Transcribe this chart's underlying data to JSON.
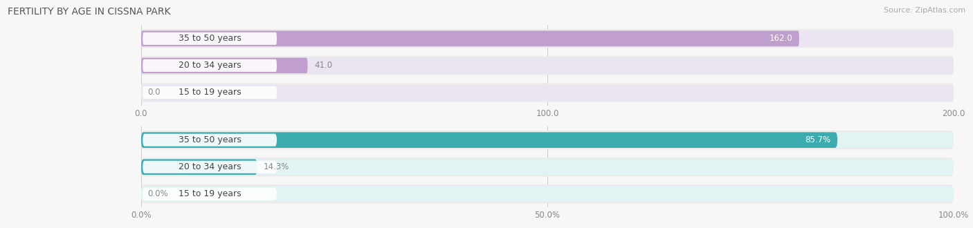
{
  "title": "FERTILITY BY AGE IN CISSNA PARK",
  "source": "Source: ZipAtlas.com",
  "top_chart": {
    "categories": [
      "15 to 19 years",
      "20 to 34 years",
      "35 to 50 years"
    ],
    "values": [
      0.0,
      41.0,
      162.0
    ],
    "xlim": [
      0,
      200
    ],
    "xticks": [
      0.0,
      100.0,
      200.0
    ],
    "xticklabels": [
      "0.0",
      "100.0",
      "200.0"
    ],
    "bar_color": "#c09ece",
    "bar_bg_color": "#eae5f0",
    "label_inside_color": "#ffffff",
    "label_outside_color": "#888888"
  },
  "bottom_chart": {
    "categories": [
      "15 to 19 years",
      "20 to 34 years",
      "35 to 50 years"
    ],
    "values": [
      0.0,
      14.3,
      85.7
    ],
    "xlim": [
      0,
      100
    ],
    "xticks": [
      0.0,
      50.0,
      100.0
    ],
    "xticklabels": [
      "0.0%",
      "50.0%",
      "100.0%"
    ],
    "bar_color": "#3aacb0",
    "bar_bg_color": "#e2f3f4",
    "label_inside_color": "#ffffff",
    "label_outside_color": "#888888"
  },
  "background_color": "#f7f7f7",
  "outer_bg_color": "#ebebeb",
  "bar_height": 0.58,
  "title_fontsize": 10,
  "source_fontsize": 8,
  "label_fontsize": 8.5,
  "tick_fontsize": 8.5,
  "category_fontsize": 9
}
